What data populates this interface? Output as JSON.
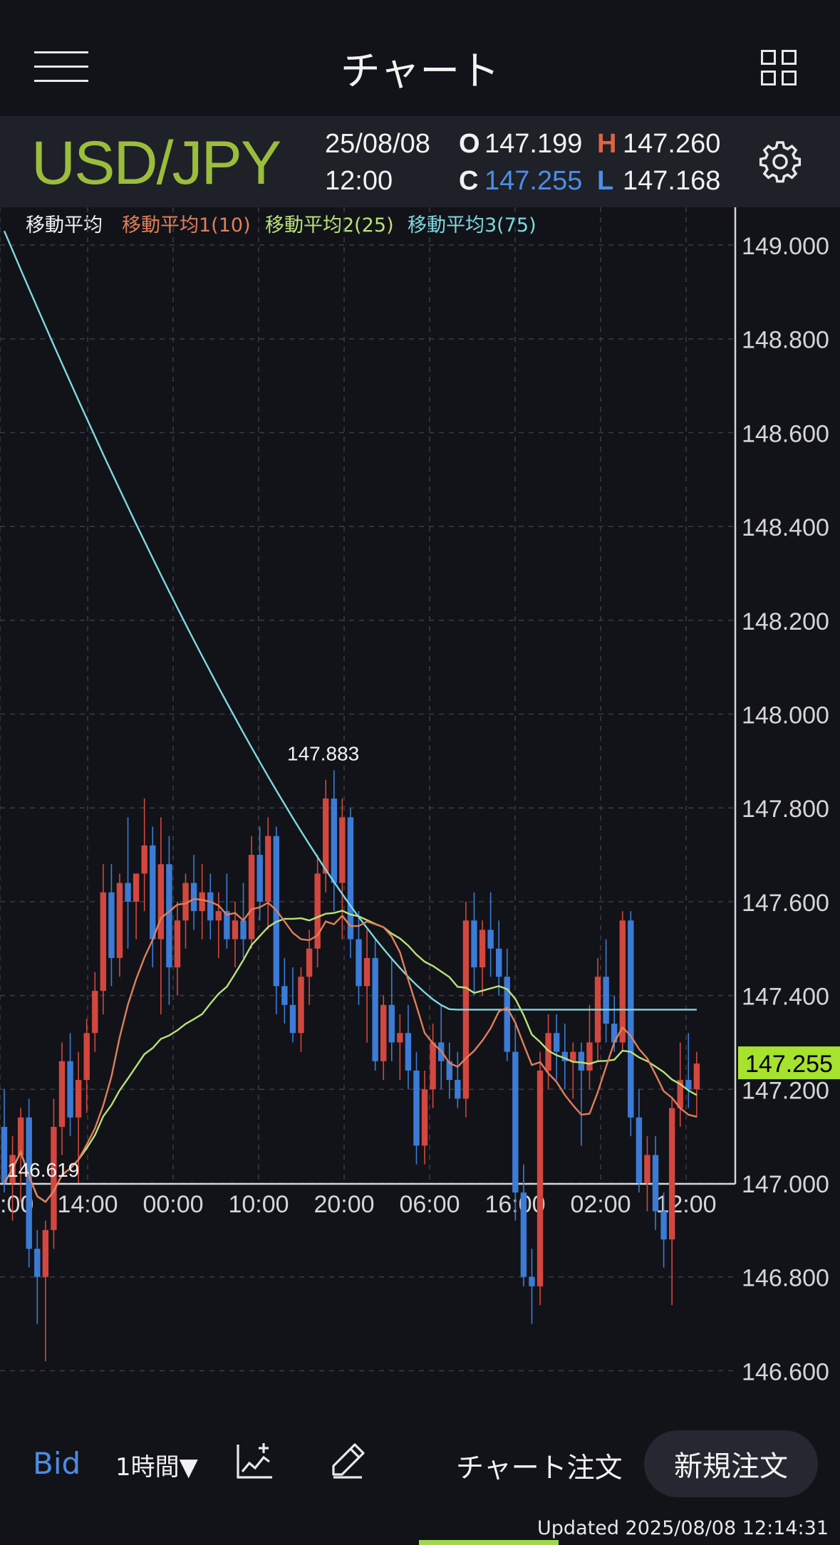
{
  "header": {
    "title": "チャート"
  },
  "symbol": {
    "pair": "USD/JPY",
    "date": "25/08/08",
    "time": "12:00",
    "open_label": "O",
    "open": "147.199",
    "high_label": "H",
    "high": "147.260",
    "close_label": "C",
    "close": "147.255",
    "low_label": "L",
    "low": "147.168"
  },
  "legend": {
    "title": "移動平均",
    "ma1": "移動平均1(10)",
    "ma2": "移動平均2(25)",
    "ma3": "移動平均3(75)"
  },
  "colors": {
    "up": "#d2473f",
    "down": "#3c7bd6",
    "ma1": "#e07f5c",
    "ma2": "#b8e27a",
    "ma3": "#7fd8e0",
    "accent_green": "#9bbd3c",
    "price_tag": "#a6e22e"
  },
  "chart_data": {
    "type": "candlestick",
    "ylim": [
      146.6,
      149.0
    ],
    "yticks": [
      "149.000",
      "148.800",
      "148.600",
      "148.400",
      "148.200",
      "148.000",
      "147.800",
      "147.600",
      "147.400",
      "147.200",
      "147.000",
      "146.800",
      "146.600"
    ],
    "xticks": [
      ":00",
      "14:00",
      "00:00",
      "10:00",
      "20:00",
      "06:00",
      "16:00",
      "02:00",
      "12:00"
    ],
    "current_price": "147.255",
    "high_annotation": "147.883",
    "low_annotation": "146.619",
    "candles": [
      [
        147.12,
        147.2,
        146.98,
        147.0
      ],
      [
        147.0,
        147.1,
        146.92,
        147.06
      ],
      [
        147.06,
        147.16,
        146.96,
        147.14
      ],
      [
        147.14,
        147.18,
        146.82,
        146.86
      ],
      [
        146.86,
        146.9,
        146.7,
        146.8
      ],
      [
        146.8,
        146.92,
        146.62,
        146.9
      ],
      [
        146.9,
        147.18,
        146.86,
        147.12
      ],
      [
        147.12,
        147.3,
        147.06,
        147.26
      ],
      [
        147.26,
        147.32,
        147.1,
        147.14
      ],
      [
        147.14,
        147.28,
        147.0,
        147.22
      ],
      [
        147.22,
        147.35,
        147.15,
        147.32
      ],
      [
        147.32,
        147.45,
        147.28,
        147.41
      ],
      [
        147.41,
        147.68,
        147.36,
        147.62
      ],
      [
        147.62,
        147.68,
        147.42,
        147.48
      ],
      [
        147.48,
        147.66,
        147.44,
        147.64
      ],
      [
        147.64,
        147.78,
        147.5,
        147.6
      ],
      [
        147.6,
        147.66,
        147.52,
        147.66
      ],
      [
        147.66,
        147.82,
        147.58,
        147.72
      ],
      [
        147.72,
        147.76,
        147.46,
        147.52
      ],
      [
        147.52,
        147.78,
        147.36,
        147.68
      ],
      [
        147.68,
        147.74,
        147.38,
        147.46
      ],
      [
        147.46,
        147.6,
        147.4,
        147.56
      ],
      [
        147.56,
        147.66,
        147.5,
        147.64
      ],
      [
        147.64,
        147.7,
        147.54,
        147.58
      ],
      [
        147.58,
        147.68,
        147.52,
        147.62
      ],
      [
        147.62,
        147.66,
        147.52,
        147.56
      ],
      [
        147.56,
        147.62,
        147.48,
        147.58
      ],
      [
        147.58,
        147.66,
        147.5,
        147.52
      ],
      [
        147.52,
        147.6,
        147.46,
        147.56
      ],
      [
        147.56,
        147.64,
        147.48,
        147.52
      ],
      [
        147.52,
        147.74,
        147.5,
        147.7
      ],
      [
        147.7,
        147.76,
        147.56,
        147.6
      ],
      [
        147.6,
        147.78,
        147.54,
        147.74
      ],
      [
        147.74,
        147.76,
        147.36,
        147.42
      ],
      [
        147.42,
        147.48,
        147.34,
        147.38
      ],
      [
        147.38,
        147.46,
        147.3,
        147.32
      ],
      [
        147.32,
        147.46,
        147.28,
        147.44
      ],
      [
        147.44,
        147.54,
        147.38,
        147.5
      ],
      [
        147.5,
        147.7,
        147.46,
        147.66
      ],
      [
        147.66,
        147.86,
        147.62,
        147.82
      ],
      [
        147.82,
        147.88,
        147.58,
        147.64
      ],
      [
        147.64,
        147.82,
        147.52,
        147.78
      ],
      [
        147.78,
        147.8,
        147.48,
        147.52
      ],
      [
        147.52,
        147.58,
        147.38,
        147.42
      ],
      [
        147.42,
        147.54,
        147.3,
        147.48
      ],
      [
        147.48,
        147.52,
        147.24,
        147.26
      ],
      [
        147.26,
        147.4,
        147.22,
        147.38
      ],
      [
        147.38,
        147.48,
        147.26,
        147.3
      ],
      [
        147.3,
        147.36,
        147.22,
        147.32
      ],
      [
        147.32,
        147.38,
        147.2,
        147.24
      ],
      [
        147.24,
        147.28,
        147.04,
        147.08
      ],
      [
        147.08,
        147.24,
        147.04,
        147.2
      ],
      [
        147.2,
        147.34,
        147.16,
        147.3
      ],
      [
        147.3,
        147.38,
        147.2,
        147.26
      ],
      [
        147.26,
        147.3,
        147.18,
        147.22
      ],
      [
        147.22,
        147.28,
        147.16,
        147.18
      ],
      [
        147.18,
        147.6,
        147.14,
        147.56
      ],
      [
        147.56,
        147.62,
        147.4,
        147.46
      ],
      [
        147.46,
        147.56,
        147.4,
        147.54
      ],
      [
        147.54,
        147.62,
        147.44,
        147.5
      ],
      [
        147.5,
        147.56,
        147.4,
        147.44
      ],
      [
        147.44,
        147.5,
        147.26,
        147.28
      ],
      [
        147.28,
        147.34,
        146.92,
        146.98
      ],
      [
        146.98,
        147.04,
        146.78,
        146.8
      ],
      [
        146.8,
        146.86,
        146.7,
        146.78
      ],
      [
        146.78,
        147.28,
        146.74,
        147.24
      ],
      [
        147.24,
        147.36,
        147.2,
        147.32
      ],
      [
        147.32,
        147.36,
        147.22,
        147.28
      ],
      [
        147.28,
        147.34,
        147.2,
        147.26
      ],
      [
        147.26,
        147.3,
        147.18,
        147.28
      ],
      [
        147.28,
        147.3,
        147.08,
        147.24
      ],
      [
        147.24,
        147.38,
        147.2,
        147.3
      ],
      [
        147.3,
        147.48,
        147.26,
        147.44
      ],
      [
        147.44,
        147.52,
        147.3,
        147.34
      ],
      [
        147.34,
        147.4,
        147.28,
        147.3
      ],
      [
        147.3,
        147.58,
        147.28,
        147.56
      ],
      [
        147.56,
        147.58,
        147.1,
        147.14
      ],
      [
        147.14,
        147.2,
        146.98,
        147.0
      ],
      [
        147.0,
        147.1,
        146.94,
        147.06
      ],
      [
        147.06,
        147.1,
        146.9,
        146.94
      ],
      [
        146.94,
        146.98,
        146.82,
        146.88
      ],
      [
        146.88,
        147.18,
        146.74,
        147.16
      ],
      [
        147.16,
        147.3,
        147.12,
        147.22
      ],
      [
        147.22,
        147.32,
        147.16,
        147.2
      ],
      [
        147.2,
        147.28,
        147.14,
        147.255
      ]
    ]
  },
  "toolbar": {
    "bid": "Bid",
    "timeframe": "1時間▼",
    "chart_order": "チャート注文",
    "new_order": "新規注文"
  },
  "status": {
    "updated": "Updated  2025/08/08 12:14:31"
  }
}
